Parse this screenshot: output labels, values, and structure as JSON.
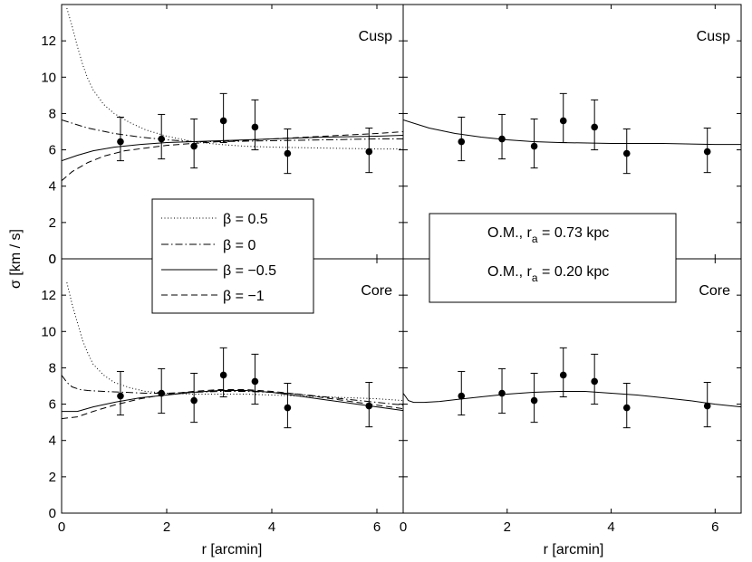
{
  "chart_data": {
    "type": "line",
    "ylabel": "σ [km / s]",
    "xlabel": "r [arcmin]",
    "xlim": [
      0,
      6.5
    ],
    "ylim": [
      0,
      14
    ],
    "xticks": [
      "0",
      "2",
      "4",
      "6"
    ],
    "yticks": [
      "0",
      "2",
      "4",
      "6",
      "8",
      "10",
      "12"
    ],
    "observations": {
      "r": [
        1.12,
        1.9,
        2.52,
        3.08,
        3.68,
        4.3,
        5.85
      ],
      "sigma": [
        6.45,
        6.6,
        6.2,
        7.6,
        7.25,
        5.8,
        5.9
      ],
      "err_low": [
        5.4,
        5.5,
        5.0,
        6.4,
        6.0,
        4.7,
        4.75
      ],
      "err_high": [
        7.8,
        7.95,
        7.7,
        9.1,
        8.75,
        7.15,
        7.2
      ]
    },
    "legend_beta": [
      {
        "label": "β = 0.5",
        "style": "dotted"
      },
      {
        "label": "β = 0",
        "style": "dashdot"
      },
      {
        "label": "β = −0.5",
        "style": "solid"
      },
      {
        "label": "β = −1",
        "style": "dashed"
      }
    ],
    "legend_om": [
      {
        "label": "O.M., r",
        "sub": "a",
        "suffix": " = 0.73 kpc"
      },
      {
        "label": "O.M., r",
        "sub": "a",
        "suffix": " = 0.20 kpc"
      }
    ],
    "panels": [
      {
        "id": "top-left",
        "label": "Cusp",
        "series": [
          {
            "name": "β = 0.5",
            "style": "dotted",
            "x": [
              0.1,
              0.2,
              0.3,
              0.4,
              0.5,
              0.6,
              0.8,
              1.0,
              1.3,
              1.6,
              2.0,
              2.5,
              3.0,
              3.5,
              4.0,
              5.0,
              6.0,
              6.5
            ],
            "y": [
              13.8,
              12.8,
              11.7,
              10.7,
              9.9,
              9.3,
              8.5,
              8.0,
              7.5,
              7.1,
              6.75,
              6.45,
              6.3,
              6.2,
              6.15,
              6.1,
              6.05,
              6.05
            ]
          },
          {
            "name": "β = 0",
            "style": "dashdot",
            "x": [
              0,
              0.5,
              1.0,
              1.5,
              2.0,
              2.5,
              3.0,
              4.0,
              5.0,
              6.0,
              6.5
            ],
            "y": [
              7.65,
              7.2,
              6.9,
              6.7,
              6.55,
              6.45,
              6.45,
              6.5,
              6.55,
              6.6,
              6.6
            ]
          },
          {
            "name": "β = −0.5",
            "style": "solid",
            "x": [
              0,
              0.3,
              0.6,
              1.0,
              1.5,
              2.0,
              2.5,
              3.0,
              4.0,
              5.0,
              6.0,
              6.5
            ],
            "y": [
              5.4,
              5.7,
              5.95,
              6.15,
              6.3,
              6.4,
              6.45,
              6.5,
              6.6,
              6.7,
              6.75,
              6.8
            ]
          },
          {
            "name": "β = −1",
            "style": "dashed",
            "x": [
              0,
              0.2,
              0.5,
              0.8,
              1.2,
              1.6,
              2.0,
              2.5,
              3.0,
              4.0,
              5.0,
              6.0,
              6.5
            ],
            "y": [
              4.3,
              4.8,
              5.3,
              5.65,
              5.95,
              6.1,
              6.25,
              6.35,
              6.45,
              6.6,
              6.75,
              6.9,
              7.0
            ]
          }
        ]
      },
      {
        "id": "top-right",
        "label": "Cusp",
        "series": [
          {
            "name": "O.M., r_a = 0.73 kpc",
            "style": "solid",
            "x": [
              0,
              0.5,
              1.0,
              1.5,
              2.0,
              2.5,
              3.0,
              4.0,
              5.0,
              6.0,
              6.5
            ],
            "y": [
              7.65,
              7.2,
              6.9,
              6.7,
              6.55,
              6.45,
              6.4,
              6.35,
              6.35,
              6.3,
              6.3
            ]
          }
        ]
      },
      {
        "id": "bottom-left",
        "label": "Core",
        "series": [
          {
            "name": "β = 0.5",
            "style": "dotted",
            "x": [
              0.1,
              0.2,
              0.3,
              0.4,
              0.5,
              0.6,
              0.8,
              1.0,
              1.3,
              1.6,
              2.0,
              2.5,
              3.0,
              3.5,
              4.0,
              5.0,
              6.0,
              6.5
            ],
            "y": [
              12.7,
              11.5,
              10.5,
              9.5,
              8.8,
              8.2,
              7.6,
              7.2,
              6.9,
              6.7,
              6.6,
              6.55,
              6.55,
              6.55,
              6.5,
              6.4,
              6.3,
              6.2
            ]
          },
          {
            "name": "β = 0",
            "style": "dashdot",
            "x": [
              0,
              0.1,
              0.2,
              0.35,
              0.5,
              0.8,
              1.2,
              1.6,
              2.0,
              2.5,
              3.0,
              3.5,
              4.0,
              4.5,
              5.0,
              5.5,
              6.0,
              6.5
            ],
            "y": [
              7.6,
              7.2,
              6.95,
              6.8,
              6.75,
              6.7,
              6.65,
              6.6,
              6.6,
              6.65,
              6.7,
              6.7,
              6.65,
              6.55,
              6.4,
              6.25,
              6.1,
              5.95
            ]
          },
          {
            "name": "β = −0.5",
            "style": "solid",
            "x": [
              0,
              0.3,
              0.6,
              1.0,
              1.5,
              2.0,
              2.5,
              3.0,
              3.5,
              4.0,
              4.5,
              5.0,
              5.5,
              6.0,
              6.5
            ],
            "y": [
              5.6,
              5.6,
              5.85,
              6.1,
              6.35,
              6.5,
              6.65,
              6.75,
              6.75,
              6.65,
              6.45,
              6.25,
              6.05,
              5.85,
              5.65
            ]
          },
          {
            "name": "β = −1",
            "style": "dashed",
            "x": [
              0,
              0.3,
              0.6,
              1.0,
              1.5,
              2.0,
              2.5,
              3.0,
              3.5,
              4.0,
              4.5,
              5.0,
              5.5,
              6.0,
              6.5
            ],
            "y": [
              5.2,
              5.3,
              5.6,
              5.95,
              6.3,
              6.55,
              6.7,
              6.8,
              6.8,
              6.7,
              6.55,
              6.35,
              6.15,
              5.95,
              5.75
            ]
          }
        ]
      },
      {
        "id": "bottom-right",
        "label": "Core",
        "series": [
          {
            "name": "O.M., r_a = 0.20 kpc",
            "style": "solid",
            "x": [
              0,
              0.05,
              0.1,
              0.2,
              0.4,
              0.7,
              1.0,
              1.5,
              2.0,
              2.5,
              3.0,
              3.5,
              4.0,
              4.5,
              5.0,
              5.5,
              6.0,
              6.5
            ],
            "y": [
              6.6,
              6.4,
              6.2,
              6.1,
              6.1,
              6.15,
              6.25,
              6.4,
              6.55,
              6.65,
              6.7,
              6.7,
              6.6,
              6.5,
              6.35,
              6.2,
              6.0,
              5.85
            ]
          }
        ]
      }
    ]
  }
}
